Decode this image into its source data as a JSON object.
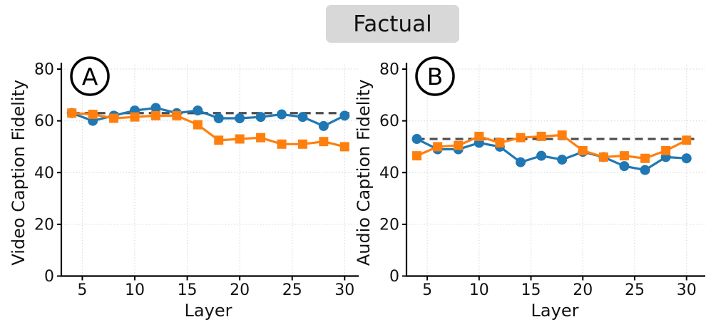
{
  "figure_title": {
    "label": "Factual"
  },
  "style": {
    "accent_blue": "#1f77b4",
    "accent_orange": "#ff7f0e",
    "baseline_gray": "#4d4d4d",
    "grid_gray": "#dcdcdc",
    "title_bg": "#d8d8d8"
  },
  "chart_data": [
    {
      "type": "line",
      "panel_label": "A",
      "title": "",
      "xlabel": "Layer",
      "ylabel": "Video Caption Fidelity",
      "x": [
        4,
        6,
        8,
        10,
        12,
        14,
        16,
        18,
        20,
        22,
        24,
        26,
        28,
        30
      ],
      "xticks": [
        5,
        10,
        15,
        20,
        25,
        30
      ],
      "yticks": [
        0,
        20,
        40,
        60,
        80
      ],
      "xlim": [
        3,
        31
      ],
      "ylim": [
        0,
        80
      ],
      "grid": true,
      "legend": "none",
      "series": [
        {
          "name": "blue-circle-series",
          "marker": "circle",
          "color": "#1f77b4",
          "values": [
            63,
            60,
            62,
            64,
            65,
            63,
            64,
            61,
            61,
            61.5,
            62.5,
            61.5,
            58,
            62
          ]
        },
        {
          "name": "orange-square-series",
          "marker": "square",
          "color": "#ff7f0e",
          "values": [
            63,
            62.5,
            61,
            61.5,
            62,
            62,
            58.5,
            52.5,
            53,
            53.5,
            51,
            51,
            52,
            50
          ]
        }
      ],
      "baseline": {
        "value": 63,
        "style": "dashed"
      }
    },
    {
      "type": "line",
      "panel_label": "B",
      "title": "",
      "xlabel": "Layer",
      "ylabel": "Audio Caption Fidelity",
      "x": [
        4,
        6,
        8,
        10,
        12,
        14,
        16,
        18,
        20,
        22,
        24,
        26,
        28,
        30
      ],
      "xticks": [
        5,
        10,
        15,
        20,
        25,
        30
      ],
      "yticks": [
        0,
        20,
        40,
        60,
        80
      ],
      "xlim": [
        3,
        31.6
      ],
      "ylim": [
        0,
        80
      ],
      "grid": true,
      "legend": "none",
      "series": [
        {
          "name": "blue-circle-series",
          "marker": "circle",
          "color": "#1f77b4",
          "values": [
            53,
            49,
            49,
            51.5,
            50,
            44,
            46.5,
            45,
            48,
            46,
            42.5,
            41,
            46,
            45.5
          ]
        },
        {
          "name": "orange-square-series",
          "marker": "square",
          "color": "#ff7f0e",
          "values": [
            46.5,
            50,
            50.5,
            54,
            51.5,
            53.5,
            54,
            54.5,
            48.5,
            46,
            46.5,
            45.5,
            48.5,
            52.5
          ]
        }
      ],
      "baseline": {
        "value": 53,
        "style": "dashed"
      }
    }
  ]
}
